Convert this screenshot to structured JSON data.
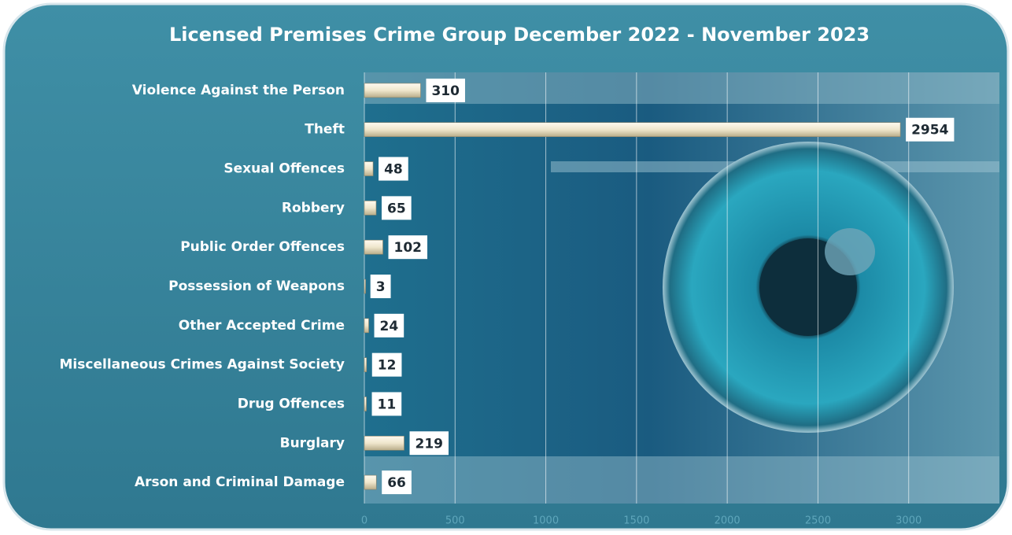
{
  "chart_data": {
    "type": "bar",
    "orientation": "horizontal",
    "title": "Licensed Premises Crime Group December 2022 - November 2023",
    "categories": [
      "Violence Against the Person",
      "Theft",
      "Sexual Offences",
      "Robbery",
      "Public Order Offences",
      "Possession of Weapons",
      "Other Accepted Crime",
      "Miscellaneous Crimes Against Society",
      "Drug Offences",
      "Burglary",
      "Arson and Criminal Damage"
    ],
    "values": [
      310,
      2954,
      48,
      65,
      102,
      3,
      24,
      12,
      11,
      219,
      66
    ],
    "color": "#efe6cc",
    "xlim": [
      0,
      3500
    ],
    "xticks": [
      0,
      500,
      1000,
      1500,
      2000,
      2500,
      3000
    ],
    "grid": true
  }
}
